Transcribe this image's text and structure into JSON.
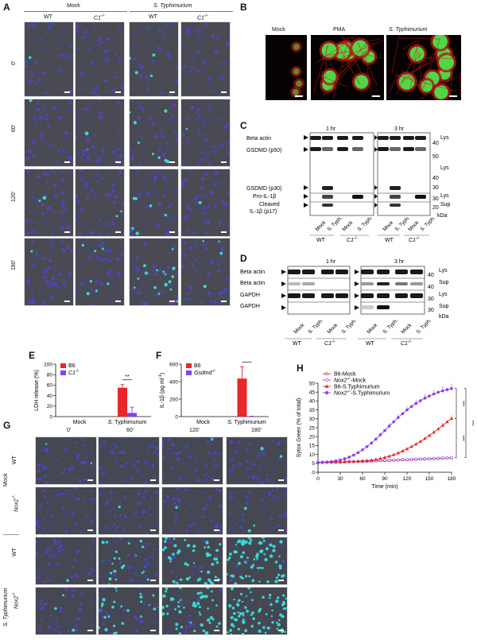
{
  "panels": {
    "A": {
      "label": "A",
      "group_headers": [
        "Mock",
        "S. Typhimurium"
      ],
      "genotypes": [
        "WT",
        "C1",
        "WT",
        "C1"
      ],
      "genotype_sup": "-/-",
      "timepoints": [
        "0'",
        "60'",
        "120'",
        "180'"
      ]
    },
    "B": {
      "label": "B",
      "conditions": [
        "Mock",
        "PMA",
        "S. Typhimurium"
      ]
    },
    "C": {
      "label": "C",
      "times": [
        "1 hr",
        "3 hr"
      ],
      "rows": [
        "Beta actin",
        "GSDMD (p50)",
        "GSDMD (p30)",
        "Pro-IL-1β",
        "Cleaved",
        "IL-1β (p17)"
      ],
      "mw_markers": [
        "40",
        "50",
        "40",
        "30",
        "30",
        "20"
      ],
      "fractions": [
        "Lys",
        "Lys",
        "Lys",
        "Sup"
      ],
      "kda": "kDa",
      "lanes": [
        "Mock",
        "S. Typh.",
        "Mock",
        "S. Typh.",
        "Mock",
        "S. Typh.",
        "Mock",
        "S. Typh."
      ],
      "genotypes": [
        "WT",
        "C1",
        "WT",
        "C1"
      ],
      "genotype_sup": "-/-"
    },
    "D": {
      "label": "D",
      "times": [
        "1 hr",
        "3 hr"
      ],
      "rows": [
        "Beta actin",
        "Beta actin",
        "GAPDH",
        "GAPDH"
      ],
      "mw_markers": [
        "40",
        "40",
        "30",
        "30"
      ],
      "fractions": [
        "Lys",
        "Sup",
        "Lys",
        "Sup"
      ],
      "kda": "kDa",
      "lanes": [
        "Mock",
        "S. Typh.",
        "Mock",
        "S. Typh.",
        "Mock",
        "S. Typh.",
        "Mock",
        "S. Typh."
      ],
      "genotypes": [
        "WT",
        "C1",
        "WT",
        "C1"
      ],
      "genotype_sup": "-/-"
    },
    "G": {
      "label": "G",
      "timepoints": [
        "0'",
        "60'",
        "120'",
        "180'"
      ],
      "groups": [
        "Mock",
        "S. Typhimurium"
      ],
      "genotypes": [
        "WT",
        "Nox2",
        "WT",
        "Nox2"
      ],
      "genotype_sup": "-/-"
    }
  },
  "chart_data": [
    {
      "id": "E",
      "type": "bar",
      "panel_label": "E",
      "ylabel": "LDH release (%)",
      "ylim": [
        0,
        100
      ],
      "yticks": [
        0,
        20,
        40,
        60,
        80,
        100
      ],
      "categories": [
        "Mock",
        "S. Typhimurium"
      ],
      "series": [
        {
          "name": "B6",
          "values": [
            0,
            55
          ],
          "errors": [
            0,
            6
          ],
          "color": "#e8262b"
        },
        {
          "name": "C1",
          "name_sup": "-/-",
          "values": [
            0,
            7
          ],
          "errors": [
            0,
            11
          ],
          "color": "#8a3ff0"
        }
      ],
      "significance": "**",
      "legend_position": "top-left"
    },
    {
      "id": "F",
      "type": "bar",
      "panel_label": "F",
      "ylabel": "IL-1β (pg ml",
      "ylabel_sup": "-1",
      "ylabel_close": ")",
      "ylim": [
        0,
        600
      ],
      "yticks": [
        0,
        200,
        400,
        600
      ],
      "categories": [
        "Mock",
        "S. Typhimurium"
      ],
      "series": [
        {
          "name": "B6",
          "values": [
            0,
            435
          ],
          "errors": [
            0,
            135
          ],
          "color": "#e8262b"
        },
        {
          "name": "Gsdmd",
          "name_sup": "-/-",
          "values": [
            0,
            3
          ],
          "errors": [
            0,
            2
          ],
          "color": "#8a3ff0"
        }
      ],
      "significance": "**",
      "legend_position": "top-left"
    },
    {
      "id": "H",
      "type": "line",
      "panel_label": "H",
      "xlabel": "Time (min)",
      "ylabel": "Sytox Green (% of total)",
      "xlim": [
        0,
        180
      ],
      "ylim": [
        0,
        50
      ],
      "xticks": [
        0,
        30,
        60,
        90,
        120,
        150,
        180
      ],
      "yticks": [
        0,
        5,
        10,
        15,
        20,
        25,
        30,
        35,
        40,
        45,
        50
      ],
      "x": [
        0,
        6,
        12,
        18,
        24,
        30,
        36,
        42,
        48,
        54,
        60,
        66,
        72,
        78,
        84,
        90,
        96,
        102,
        108,
        114,
        120,
        126,
        132,
        138,
        144,
        150,
        156,
        162,
        168,
        174,
        180
      ],
      "series": [
        {
          "name": "B6-Mock",
          "color": "#e8262b",
          "marker": "triangle-open",
          "values": [
            5.5,
            5.6,
            5.6,
            5.7,
            5.7,
            5.8,
            5.8,
            5.9,
            6.0,
            6.0,
            6.1,
            6.2,
            6.3,
            6.4,
            6.5,
            6.6,
            6.7,
            6.8,
            6.9,
            7.0,
            7.1,
            7.2,
            7.3,
            7.4,
            7.5,
            7.6,
            7.7,
            7.8,
            7.9,
            8.0,
            8.1
          ]
        },
        {
          "name": "Nox2",
          "name_sup": "-/-",
          "name_suffix": "-Mock",
          "color": "#8a3ff0",
          "marker": "circle-open",
          "values": [
            5.5,
            5.6,
            5.6,
            5.7,
            5.8,
            5.8,
            5.9,
            6.0,
            6.0,
            6.1,
            6.2,
            6.3,
            6.4,
            6.5,
            6.6,
            6.7,
            6.8,
            6.9,
            7.0,
            7.1,
            7.2,
            7.3,
            7.4,
            7.5,
            7.6,
            7.7,
            7.8,
            7.9,
            8.0,
            8.1,
            8.2
          ]
        },
        {
          "name": "B6-S.Typhimurium",
          "color": "#e8262b",
          "marker": "triangle-filled",
          "values": [
            5.5,
            5.5,
            5.6,
            5.6,
            5.7,
            5.7,
            5.8,
            5.9,
            6.0,
            6.1,
            6.3,
            6.5,
            6.8,
            7.2,
            7.7,
            8.3,
            9.0,
            9.8,
            10.8,
            11.9,
            13.1,
            14.4,
            15.8,
            17.3,
            18.9,
            20.6,
            22.4,
            24.3,
            26.3,
            28.3,
            30.2
          ]
        },
        {
          "name": "Nox2",
          "name_sup": "-/-",
          "name_suffix": "-S.Typhimurium",
          "color": "#8a3ff0",
          "marker": "circle-filled",
          "values": [
            5.5,
            5.6,
            5.8,
            6.0,
            6.4,
            6.9,
            7.6,
            8.5,
            9.6,
            11.0,
            12.6,
            14.4,
            16.4,
            18.6,
            21.0,
            23.4,
            25.9,
            28.3,
            30.7,
            32.9,
            35.0,
            36.9,
            38.6,
            40.2,
            41.6,
            42.8,
            43.9,
            44.9,
            45.7,
            46.4,
            47.0
          ]
        }
      ],
      "significance": [
        "***",
        "***",
        "***"
      ],
      "legend_position": "top-left",
      "grid": false
    }
  ]
}
